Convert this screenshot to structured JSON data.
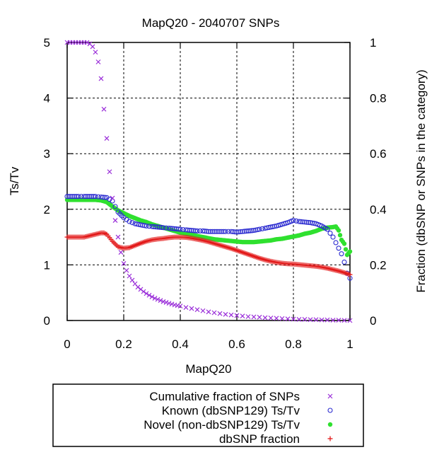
{
  "chart_data": {
    "type": "scatter",
    "title": "MapQ20 - 2040707 SNPs",
    "xlabel": "MapQ20",
    "ylabel": "Ts/Tv",
    "y2label": "Fraction (dbSNP or SNPs in the category)",
    "xlim": [
      0,
      1
    ],
    "ylim": [
      0,
      5
    ],
    "y2lim": [
      0,
      1
    ],
    "xticks": [
      "0",
      "0.2",
      "0.4",
      "0.6",
      "0.8",
      "1"
    ],
    "yticks": [
      "0",
      "1",
      "2",
      "3",
      "4",
      "5"
    ],
    "y2ticks": [
      "0",
      "0.2",
      "0.4",
      "0.6",
      "0.8",
      "1"
    ],
    "grid": true,
    "legend_position": "bottom (below plot, boxed)",
    "series": [
      {
        "name": "Cumulative fraction of SNPs",
        "axis": "y2",
        "marker": "x",
        "color": "#9b30d9",
        "x": [
          0.0,
          0.01,
          0.02,
          0.03,
          0.04,
          0.05,
          0.06,
          0.07,
          0.08,
          0.09,
          0.1,
          0.11,
          0.12,
          0.13,
          0.14,
          0.15,
          0.16,
          0.17,
          0.18,
          0.19,
          0.2,
          0.21,
          0.22,
          0.23,
          0.24,
          0.25,
          0.26,
          0.27,
          0.28,
          0.29,
          0.3,
          0.31,
          0.32,
          0.33,
          0.34,
          0.35,
          0.36,
          0.37,
          0.38,
          0.39,
          0.4,
          0.42,
          0.44,
          0.46,
          0.48,
          0.5,
          0.52,
          0.54,
          0.56,
          0.58,
          0.6,
          0.62,
          0.64,
          0.66,
          0.68,
          0.7,
          0.72,
          0.74,
          0.76,
          0.78,
          0.8,
          0.82,
          0.84,
          0.86,
          0.88,
          0.9,
          0.92,
          0.94,
          0.96,
          0.98,
          1.0
        ],
        "y": [
          1.0,
          1.0,
          1.0,
          1.0,
          1.0,
          1.0,
          1.0,
          1.0,
          0.995,
          0.985,
          0.965,
          0.93,
          0.87,
          0.76,
          0.655,
          0.535,
          0.44,
          0.36,
          0.3,
          0.245,
          0.205,
          0.18,
          0.16,
          0.145,
          0.132,
          0.12,
          0.112,
          0.104,
          0.097,
          0.091,
          0.085,
          0.08,
          0.076,
          0.072,
          0.068,
          0.065,
          0.062,
          0.059,
          0.056,
          0.054,
          0.052,
          0.047,
          0.043,
          0.039,
          0.035,
          0.031,
          0.028,
          0.025,
          0.022,
          0.02,
          0.018,
          0.016,
          0.014,
          0.013,
          0.012,
          0.01,
          0.009,
          0.008,
          0.007,
          0.006,
          0.005,
          0.004,
          0.004,
          0.003,
          0.003,
          0.002,
          0.002,
          0.001,
          0.001,
          0.0005,
          0.0
        ]
      },
      {
        "name": "Known (dbSNP129) Ts/Tv",
        "axis": "y",
        "marker": "circle",
        "color": "#2c2cd0",
        "x": [
          0.0,
          0.02,
          0.04,
          0.06,
          0.08,
          0.1,
          0.12,
          0.14,
          0.16,
          0.17,
          0.18,
          0.2,
          0.22,
          0.24,
          0.26,
          0.28,
          0.3,
          0.32,
          0.34,
          0.36,
          0.38,
          0.4,
          0.42,
          0.44,
          0.46,
          0.48,
          0.5,
          0.52,
          0.54,
          0.56,
          0.58,
          0.6,
          0.62,
          0.64,
          0.66,
          0.68,
          0.7,
          0.72,
          0.74,
          0.76,
          0.78,
          0.8,
          0.82,
          0.84,
          0.86,
          0.88,
          0.9,
          0.92,
          0.94,
          0.95,
          0.96,
          0.97,
          0.98,
          0.99,
          1.0
        ],
        "y": [
          2.23,
          2.23,
          2.23,
          2.23,
          2.23,
          2.23,
          2.22,
          2.21,
          2.15,
          2.05,
          1.95,
          1.85,
          1.78,
          1.74,
          1.72,
          1.7,
          1.69,
          1.68,
          1.67,
          1.66,
          1.65,
          1.64,
          1.63,
          1.62,
          1.61,
          1.61,
          1.6,
          1.6,
          1.6,
          1.6,
          1.6,
          1.59,
          1.6,
          1.61,
          1.62,
          1.64,
          1.66,
          1.68,
          1.7,
          1.73,
          1.76,
          1.8,
          1.78,
          1.77,
          1.76,
          1.74,
          1.7,
          1.64,
          1.5,
          1.4,
          1.3,
          1.2,
          1.05,
          0.85,
          0.76
        ]
      },
      {
        "name": "Novel (non-dbSNP129) Ts/Tv",
        "axis": "y",
        "marker": "dot",
        "color": "#2fe02f",
        "x": [
          0.0,
          0.02,
          0.04,
          0.06,
          0.08,
          0.1,
          0.12,
          0.14,
          0.16,
          0.18,
          0.2,
          0.22,
          0.24,
          0.26,
          0.28,
          0.3,
          0.32,
          0.34,
          0.36,
          0.38,
          0.4,
          0.42,
          0.44,
          0.46,
          0.48,
          0.5,
          0.52,
          0.54,
          0.56,
          0.58,
          0.6,
          0.62,
          0.64,
          0.66,
          0.68,
          0.7,
          0.72,
          0.74,
          0.76,
          0.78,
          0.8,
          0.82,
          0.84,
          0.86,
          0.88,
          0.9,
          0.92,
          0.94,
          0.95,
          0.96,
          0.97,
          0.98,
          0.99,
          1.0
        ],
        "y": [
          2.17,
          2.17,
          2.17,
          2.17,
          2.17,
          2.17,
          2.16,
          2.13,
          2.05,
          1.98,
          1.93,
          1.88,
          1.84,
          1.8,
          1.77,
          1.73,
          1.7,
          1.67,
          1.64,
          1.61,
          1.58,
          1.56,
          1.54,
          1.52,
          1.5,
          1.48,
          1.46,
          1.45,
          1.44,
          1.43,
          1.42,
          1.41,
          1.41,
          1.41,
          1.42,
          1.43,
          1.44,
          1.46,
          1.47,
          1.49,
          1.51,
          1.53,
          1.56,
          1.58,
          1.61,
          1.65,
          1.67,
          1.68,
          1.69,
          1.62,
          1.45,
          1.38,
          1.18,
          1.24
        ]
      },
      {
        "name": "dbSNP fraction",
        "axis": "y2",
        "marker": "plus",
        "color": "#e31a1a",
        "x": [
          0.0,
          0.02,
          0.04,
          0.06,
          0.08,
          0.1,
          0.12,
          0.13,
          0.14,
          0.16,
          0.18,
          0.2,
          0.22,
          0.24,
          0.26,
          0.28,
          0.3,
          0.32,
          0.34,
          0.36,
          0.38,
          0.4,
          0.42,
          0.44,
          0.46,
          0.48,
          0.5,
          0.52,
          0.54,
          0.56,
          0.58,
          0.6,
          0.62,
          0.64,
          0.66,
          0.68,
          0.7,
          0.72,
          0.74,
          0.76,
          0.78,
          0.8,
          0.82,
          0.84,
          0.86,
          0.88,
          0.9,
          0.92,
          0.94,
          0.96,
          0.98,
          1.0
        ],
        "y": [
          0.3,
          0.3,
          0.3,
          0.3,
          0.305,
          0.31,
          0.315,
          0.315,
          0.31,
          0.285,
          0.265,
          0.26,
          0.262,
          0.27,
          0.278,
          0.285,
          0.29,
          0.293,
          0.295,
          0.298,
          0.3,
          0.3,
          0.299,
          0.296,
          0.292,
          0.288,
          0.283,
          0.277,
          0.271,
          0.265,
          0.259,
          0.252,
          0.245,
          0.238,
          0.231,
          0.224,
          0.218,
          0.213,
          0.209,
          0.206,
          0.204,
          0.203,
          0.201,
          0.199,
          0.197,
          0.195,
          0.192,
          0.188,
          0.183,
          0.178,
          0.172,
          0.165
        ]
      }
    ]
  }
}
